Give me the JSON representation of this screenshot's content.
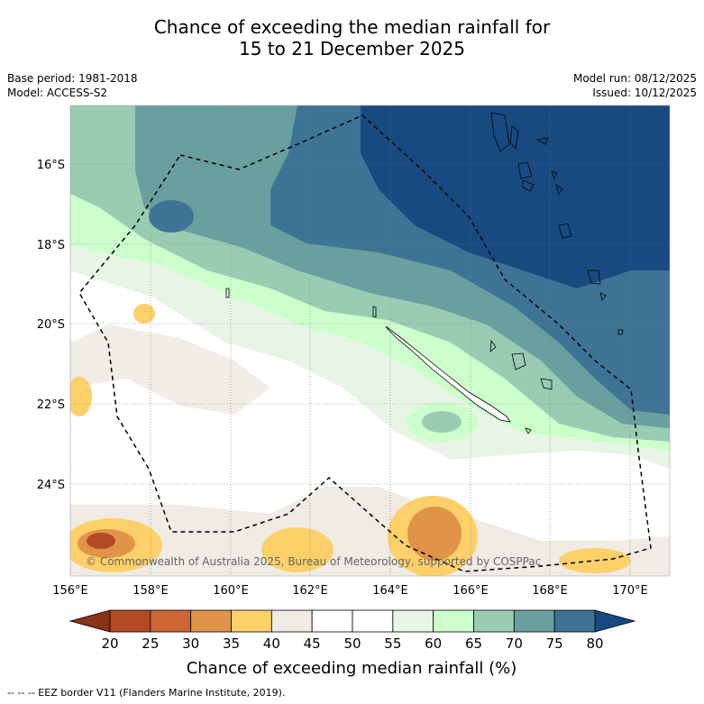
{
  "title": {
    "line1": "Chance of exceeding the median rainfall for",
    "line2": "15 to 21 December 2025"
  },
  "meta": {
    "base_period": "Base period: 1981-2018",
    "model": "Model: ACCESS-S2",
    "model_run": "Model run: 08/12/2025",
    "issued": "Issued: 10/12/2025"
  },
  "axes": {
    "lat_labels": [
      "16°S",
      "18°S",
      "20°S",
      "22°S",
      "24°S"
    ],
    "lon_labels": [
      "156°E",
      "158°E",
      "160°E",
      "162°E",
      "164°E",
      "166°E",
      "168°E",
      "170°E"
    ]
  },
  "copyright": "© Commonwealth of Australia 2025, Bureau of Meteorology, supported by COSPPac",
  "colorbar": {
    "ticks": [
      "20",
      "25",
      "30",
      "35",
      "40",
      "45",
      "50",
      "55",
      "60",
      "65",
      "70",
      "75",
      "80"
    ],
    "colors": [
      "#8a3318",
      "#b34a24",
      "#cc6633",
      "#e0944a",
      "#fdd06a",
      "#f0ebe4",
      "#ffffff",
      "#ffffff",
      "#e8f5e6",
      "#ccffcc",
      "#99ccb3",
      "#6a9fa0",
      "#3d7496",
      "#184a82"
    ],
    "label": "Chance of exceeding median rainfall (%)"
  },
  "legend": {
    "eez": "-- -- -- EEZ border V11 (Flanders Marine Institute, 2019)."
  }
}
